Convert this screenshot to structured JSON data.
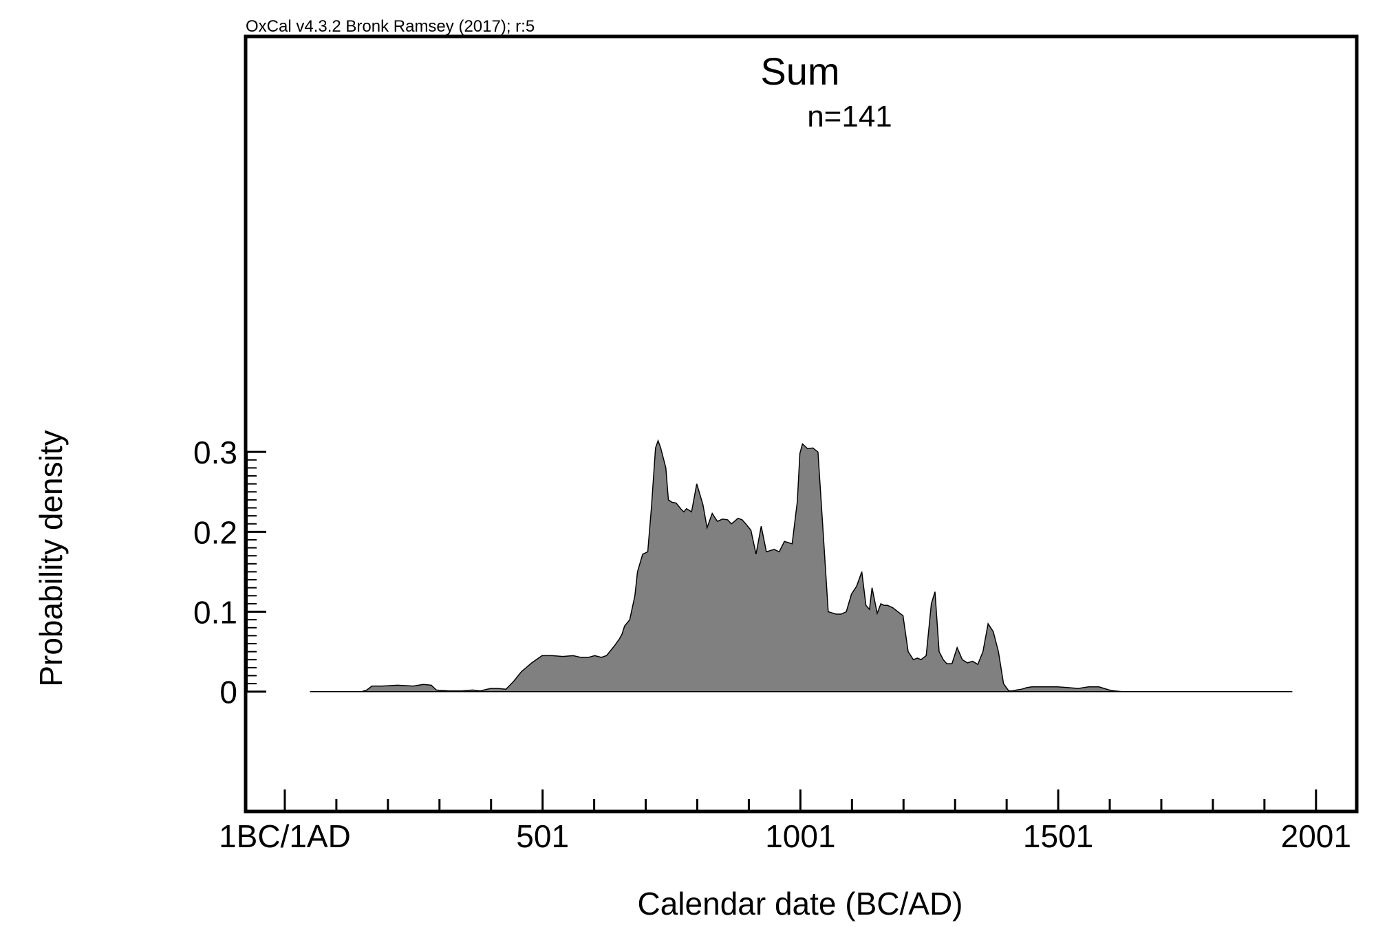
{
  "credit": "OxCal v4.3.2 Bronk Ramsey (2017); r:5",
  "chart_data": {
    "type": "area",
    "title": "Sum",
    "subtitle": "n=141",
    "xlabel": "Calendar date (BC/AD)",
    "ylabel": "Probability density",
    "xlim": [
      -75,
      2080
    ],
    "ylim": [
      -0.15,
      0.82
    ],
    "x_ticks": [
      {
        "value": 1,
        "label": "1BC/1AD"
      },
      {
        "value": 501,
        "label": "501"
      },
      {
        "value": 1001,
        "label": "1001"
      },
      {
        "value": 1501,
        "label": "1501"
      },
      {
        "value": 2001,
        "label": "2001"
      }
    ],
    "y_ticks": [
      {
        "value": 0,
        "label": "0"
      },
      {
        "value": 0.1,
        "label": "0.1"
      },
      {
        "value": 0.2,
        "label": "0.2"
      },
      {
        "value": 0.3,
        "label": "0.3"
      }
    ],
    "fill_color": "#808080",
    "line_color": "#000000",
    "series": [
      {
        "x": [
          50,
          110,
          150,
          160,
          170,
          190,
          220,
          250,
          270,
          285,
          295,
          320,
          345,
          365,
          380,
          400,
          415,
          430,
          445,
          460,
          480,
          500,
          520,
          540,
          560,
          575,
          590,
          602,
          615,
          625,
          640,
          650,
          655,
          660,
          670,
          680,
          685,
          695,
          705,
          712,
          720,
          725,
          730,
          740,
          745,
          752,
          760,
          770,
          775,
          780,
          790,
          800,
          812,
          820,
          830,
          840,
          850,
          860,
          867,
          873,
          880,
          888,
          895,
          905,
          915,
          925,
          935,
          950,
          960,
          970,
          985,
          995,
          1000,
          1005,
          1015,
          1025,
          1035,
          1045,
          1055,
          1070,
          1080,
          1090,
          1100,
          1110,
          1120,
          1128,
          1135,
          1140,
          1150,
          1157,
          1163,
          1170,
          1180,
          1190,
          1200,
          1210,
          1220,
          1228,
          1235,
          1245,
          1255,
          1262,
          1270,
          1278,
          1285,
          1295,
          1305,
          1315,
          1325,
          1335,
          1345,
          1355,
          1365,
          1375,
          1385,
          1395,
          1405,
          1412,
          1420,
          1430,
          1440,
          1450,
          1460,
          1480,
          1500,
          1520,
          1540,
          1560,
          1580,
          1600,
          1610,
          1625,
          1640,
          1660,
          1680,
          1700,
          1750,
          1800,
          1850,
          1900,
          1950,
          1955
        ],
        "y": [
          0,
          0,
          0,
          0.002,
          0.007,
          0.007,
          0.008,
          0.007,
          0.009,
          0.008,
          0.002,
          0.001,
          0.001,
          0.002,
          0.001,
          0.004,
          0.004,
          0.003,
          0.013,
          0.025,
          0.036,
          0.045,
          0.045,
          0.044,
          0.045,
          0.043,
          0.043,
          0.045,
          0.043,
          0.045,
          0.057,
          0.066,
          0.072,
          0.082,
          0.09,
          0.12,
          0.15,
          0.172,
          0.175,
          0.23,
          0.305,
          0.314,
          0.305,
          0.28,
          0.24,
          0.237,
          0.236,
          0.228,
          0.225,
          0.229,
          0.225,
          0.26,
          0.234,
          0.205,
          0.223,
          0.213,
          0.216,
          0.215,
          0.21,
          0.213,
          0.217,
          0.215,
          0.21,
          0.202,
          0.172,
          0.207,
          0.175,
          0.178,
          0.175,
          0.188,
          0.185,
          0.238,
          0.298,
          0.31,
          0.304,
          0.305,
          0.3,
          0.2,
          0.1,
          0.097,
          0.097,
          0.1,
          0.122,
          0.132,
          0.15,
          0.108,
          0.103,
          0.13,
          0.098,
          0.11,
          0.108,
          0.108,
          0.105,
          0.1,
          0.095,
          0.05,
          0.04,
          0.042,
          0.04,
          0.045,
          0.11,
          0.125,
          0.05,
          0.04,
          0.035,
          0.035,
          0.055,
          0.04,
          0.036,
          0.038,
          0.034,
          0.05,
          0.085,
          0.075,
          0.05,
          0.01,
          0.001,
          0.001,
          0.002,
          0.003,
          0.005,
          0.006,
          0.006,
          0.006,
          0.006,
          0.005,
          0.004,
          0.006,
          0.006,
          0.002,
          0.001,
          0,
          0,
          0,
          0,
          0,
          0,
          0,
          0,
          0,
          0,
          0
        ]
      }
    ]
  }
}
